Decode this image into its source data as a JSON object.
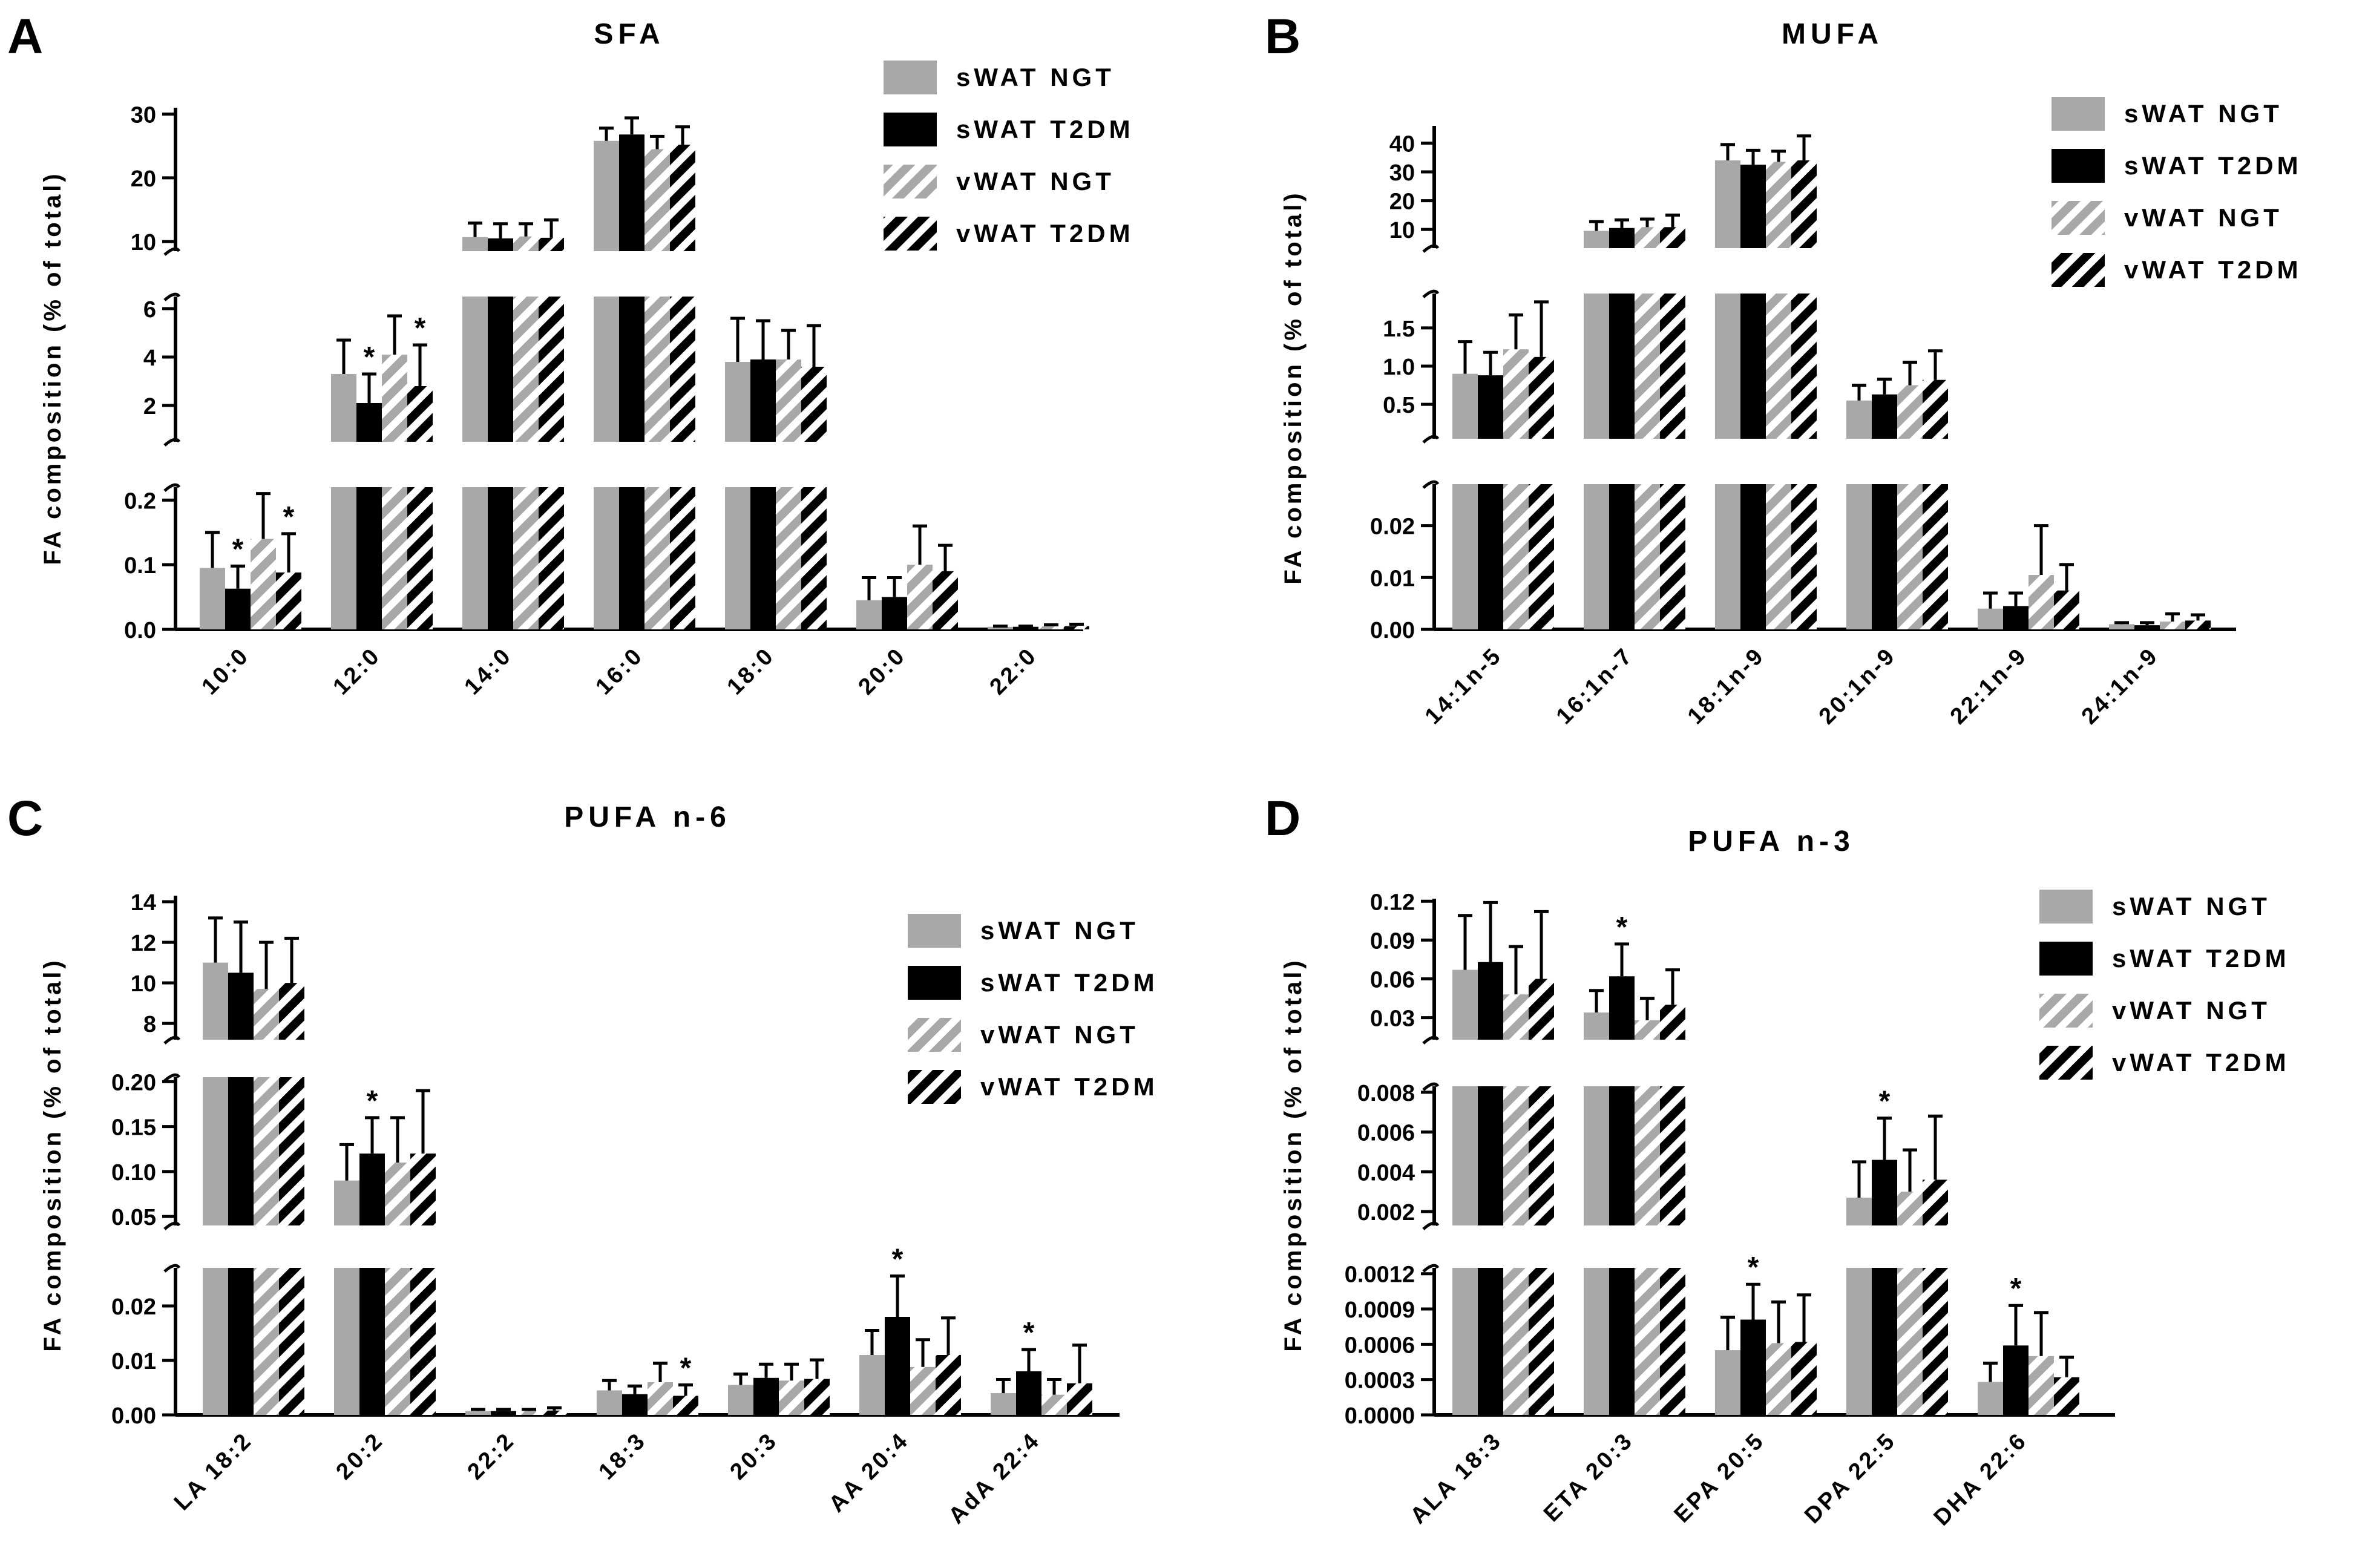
{
  "figure": {
    "series_styles": [
      {
        "name": "sWAT NGT",
        "fill": "#a8a8a8",
        "pattern": "solid"
      },
      {
        "name": "sWAT T2DM",
        "fill": "#000000",
        "pattern": "solid"
      },
      {
        "name": "vWAT NGT",
        "fill": "#a8a8a8",
        "pattern": "hatch"
      },
      {
        "name": "vWAT T2DM",
        "fill": "#000000",
        "pattern": "hatch"
      }
    ],
    "sig_marker": "*"
  },
  "chart_data": [
    {
      "panel": "A",
      "type": "bar",
      "title": "SFA",
      "ylabel": "FA composition (% of total)",
      "legend": [
        "sWAT NGT",
        "sWAT T2DM",
        "vWAT NGT",
        "vWAT T2DM"
      ],
      "categories": [
        "10:0",
        "12:0",
        "14:0",
        "16:0",
        "18:0",
        "20:0",
        "22:0"
      ],
      "segments": [
        {
          "range": [
            0,
            0.22
          ],
          "ticks": [
            "0.0",
            "0.1",
            "0.2"
          ]
        },
        {
          "range": [
            0.5,
            6.5
          ],
          "ticks": [
            "2",
            "4",
            "6"
          ]
        },
        {
          "range": [
            8.5,
            31
          ],
          "ticks": [
            "10",
            "20",
            "30"
          ]
        }
      ],
      "series": [
        {
          "name": "sWAT NGT",
          "values": [
            0.095,
            3.3,
            10.7,
            25.8,
            3.8,
            0.045,
            0.004
          ],
          "errors": [
            0.055,
            1.4,
            2.2,
            2.0,
            1.8,
            0.035,
            0.001
          ],
          "sig": [
            false,
            false,
            false,
            false,
            false,
            false,
            false
          ]
        },
        {
          "name": "sWAT T2DM",
          "values": [
            0.063,
            2.1,
            10.5,
            26.8,
            3.9,
            0.05,
            0.004
          ],
          "errors": [
            0.035,
            1.2,
            2.3,
            2.6,
            1.6,
            0.03,
            0.001
          ],
          "sig": [
            true,
            true,
            false,
            false,
            false,
            false,
            false
          ]
        },
        {
          "name": "vWAT NGT",
          "values": [
            0.14,
            4.1,
            10.8,
            24.5,
            3.9,
            0.1,
            0.005
          ],
          "errors": [
            0.07,
            1.6,
            2.0,
            2.0,
            1.2,
            0.06,
            0.002
          ],
          "sig": [
            false,
            false,
            false,
            false,
            false,
            false,
            false
          ]
        },
        {
          "name": "vWAT T2DM",
          "values": [
            0.088,
            2.8,
            10.6,
            25.2,
            3.6,
            0.09,
            0.005
          ],
          "errors": [
            0.06,
            1.7,
            2.8,
            2.8,
            1.7,
            0.04,
            0.003
          ],
          "sig": [
            true,
            true,
            false,
            false,
            false,
            false,
            false
          ]
        }
      ]
    },
    {
      "panel": "B",
      "type": "bar",
      "title": "MUFA",
      "ylabel": "FA composition (% of total)",
      "legend": [
        "sWAT NGT",
        "sWAT T2DM",
        "vWAT NGT",
        "vWAT T2DM"
      ],
      "categories": [
        "14:1n-5",
        "16:1n-7",
        "18:1n-9",
        "20:1n-9",
        "22:1n-9",
        "24:1n-9"
      ],
      "segments": [
        {
          "range": [
            0,
            0.028
          ],
          "ticks": [
            "0.00",
            "0.01",
            "0.02"
          ]
        },
        {
          "range": [
            0.05,
            1.95
          ],
          "ticks": [
            "0.5",
            "1.0",
            "1.5"
          ]
        },
        {
          "range": [
            3.5,
            46
          ],
          "ticks": [
            "10",
            "20",
            "30",
            "40"
          ]
        }
      ],
      "series": [
        {
          "name": "sWAT NGT",
          "values": [
            0.9,
            9.5,
            34,
            0.55,
            0.004,
            0.001
          ],
          "errors": [
            0.42,
            3.2,
            5.5,
            0.2,
            0.003,
            0.0003
          ],
          "sig": [
            false,
            false,
            false,
            false,
            false,
            false
          ]
        },
        {
          "name": "sWAT T2DM",
          "values": [
            0.88,
            10.5,
            32.5,
            0.63,
            0.0045,
            0.0008
          ],
          "errors": [
            0.3,
            2.8,
            5.0,
            0.2,
            0.0025,
            0.0005
          ],
          "sig": [
            false,
            false,
            false,
            false,
            false,
            false
          ]
        },
        {
          "name": "vWAT NGT",
          "values": [
            1.22,
            10.8,
            33.5,
            0.75,
            0.0105,
            0.0015
          ],
          "errors": [
            0.45,
            2.8,
            3.7,
            0.3,
            0.0095,
            0.0015
          ],
          "sig": [
            false,
            false,
            false,
            false,
            false,
            false
          ]
        },
        {
          "name": "vWAT T2DM",
          "values": [
            1.12,
            10.8,
            34,
            0.82,
            0.0075,
            0.0017
          ],
          "errors": [
            0.72,
            4.2,
            8.5,
            0.38,
            0.005,
            0.0011
          ],
          "sig": [
            false,
            false,
            false,
            false,
            false,
            false
          ]
        }
      ]
    },
    {
      "panel": "C",
      "type": "bar",
      "title": "PUFA n-6",
      "ylabel": "FA composition (% of total)",
      "legend": [
        "sWAT NGT",
        "sWAT T2DM",
        "vWAT NGT",
        "vWAT T2DM"
      ],
      "categories": [
        "LA 18:2",
        "20:2",
        "22:2",
        "18:3",
        "20:3",
        "AA 20:4",
        "AdA 22:4"
      ],
      "segments": [
        {
          "range": [
            0,
            0.027
          ],
          "ticks": [
            "0.00",
            "0.01",
            "0.02"
          ]
        },
        {
          "range": [
            0.04,
            0.205
          ],
          "ticks": [
            "0.05",
            "0.10",
            "0.15",
            "0.20"
          ]
        },
        {
          "range": [
            7.2,
            14.3
          ],
          "ticks": [
            "8",
            "10",
            "12",
            "14"
          ]
        }
      ],
      "series": [
        {
          "name": "sWAT NGT",
          "values": [
            11,
            0.09,
            0.0007,
            0.0045,
            0.0055,
            0.011,
            0.004
          ],
          "errors": [
            2.2,
            0.04,
            0.0003,
            0.0018,
            0.002,
            0.0045,
            0.0025
          ],
          "sig": [
            false,
            false,
            false,
            false,
            false,
            false,
            false
          ]
        },
        {
          "name": "sWAT T2DM",
          "values": [
            10.5,
            0.12,
            0.0007,
            0.0038,
            0.0068,
            0.018,
            0.008
          ],
          "errors": [
            2.5,
            0.04,
            0.0003,
            0.0015,
            0.0025,
            0.0075,
            0.004
          ],
          "sig": [
            false,
            true,
            false,
            false,
            false,
            true,
            true
          ]
        },
        {
          "name": "vWAT NGT",
          "values": [
            9.7,
            0.11,
            0.0007,
            0.006,
            0.0063,
            0.0088,
            0.0037
          ],
          "errors": [
            2.3,
            0.05,
            0.0003,
            0.0035,
            0.003,
            0.005,
            0.0028
          ],
          "sig": [
            false,
            false,
            false,
            false,
            false,
            false,
            false
          ]
        },
        {
          "name": "vWAT T2DM",
          "values": [
            10,
            0.12,
            0.0008,
            0.0035,
            0.0066,
            0.011,
            0.0058
          ],
          "errors": [
            2.2,
            0.07,
            0.0005,
            0.002,
            0.0035,
            0.0068,
            0.007
          ],
          "sig": [
            false,
            false,
            false,
            true,
            false,
            false,
            false
          ]
        }
      ]
    },
    {
      "panel": "D",
      "type": "bar",
      "title": "PUFA n-3",
      "ylabel": "FA composition (% of total)",
      "legend": [
        "sWAT NGT",
        "sWAT T2DM",
        "vWAT NGT",
        "vWAT T2DM"
      ],
      "categories": [
        "ALA 18:3",
        "ETA 20:3",
        "EPA 20:5",
        "DPA 22:5",
        "DHA 22:6"
      ],
      "segments": [
        {
          "range": [
            0,
            0.00125
          ],
          "ticks": [
            "0.0000",
            "0.0003",
            "0.0006",
            "0.0009",
            "0.0012"
          ]
        },
        {
          "range": [
            0.0013,
            0.0083
          ],
          "ticks": [
            "0.002",
            "0.004",
            "0.006",
            "0.008"
          ]
        },
        {
          "range": [
            0.013,
            0.122
          ],
          "ticks": [
            "0.03",
            "0.06",
            "0.09",
            "0.12"
          ]
        }
      ],
      "series": [
        {
          "name": "sWAT NGT",
          "values": [
            0.067,
            0.034,
            0.00055,
            0.0027,
            0.00028
          ],
          "errors": [
            0.042,
            0.017,
            0.00028,
            0.0018,
            0.00016
          ],
          "sig": [
            false,
            false,
            false,
            false,
            false
          ]
        },
        {
          "name": "sWAT T2DM",
          "values": [
            0.073,
            0.062,
            0.00081,
            0.0046,
            0.00059
          ],
          "errors": [
            0.046,
            0.025,
            0.0003,
            0.0021,
            0.00034
          ],
          "sig": [
            false,
            true,
            true,
            true,
            true
          ]
        },
        {
          "name": "vWAT NGT",
          "values": [
            0.048,
            0.028,
            0.00061,
            0.003,
            0.0005
          ],
          "errors": [
            0.037,
            0.017,
            0.00035,
            0.0021,
            0.00037
          ],
          "sig": [
            false,
            false,
            false,
            false,
            false
          ]
        },
        {
          "name": "vWAT T2DM",
          "values": [
            0.06,
            0.04,
            0.00062,
            0.0036,
            0.00032
          ],
          "errors": [
            0.052,
            0.027,
            0.0004,
            0.0032,
            0.00017
          ],
          "sig": [
            false,
            false,
            false,
            false,
            false
          ]
        }
      ]
    }
  ]
}
